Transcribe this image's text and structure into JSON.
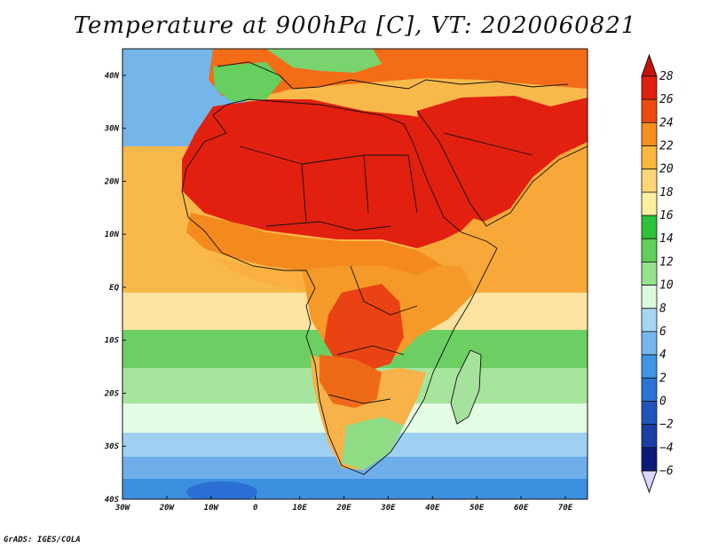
{
  "title": "Temperature at 900hPa [C], VT: 2020060821",
  "credit": "GrADS: IGES/COLA",
  "map": {
    "lon_range": [
      -30,
      75
    ],
    "lat_range": [
      -40,
      45
    ],
    "lon_ticks": [
      "30W",
      "20W",
      "10W",
      "0",
      "10E",
      "20E",
      "30E",
      "40E",
      "50E",
      "60E",
      "70E"
    ],
    "lat_ticks": [
      "40S",
      "30S",
      "20S",
      "10S",
      "EQ",
      "10N",
      "20N",
      "30N",
      "40N"
    ],
    "ocean_color": "#f2a640",
    "land_hot_color": "#dd1a0c"
  },
  "colorbar": {
    "labels": [
      "28",
      "26",
      "24",
      "22",
      "20",
      "18",
      "16",
      "14",
      "12",
      "10",
      "8",
      "6",
      "4",
      "2",
      "0",
      "−2",
      "−4",
      "−6"
    ],
    "colors": [
      "#e0200c",
      "#f04a10",
      "#f6901e",
      "#fbb63e",
      "#fdd777",
      "#fff0a0",
      "#2ec13a",
      "#5fd15a",
      "#94e28d",
      "#def9de",
      "#a6d6f3",
      "#75b7ec",
      "#3f95e2",
      "#2a74d6",
      "#1f54bb",
      "#183ea3",
      "#0b1b7a"
    ],
    "top_color": "#c8120a",
    "bottom_color": "#dcd6ff"
  }
}
